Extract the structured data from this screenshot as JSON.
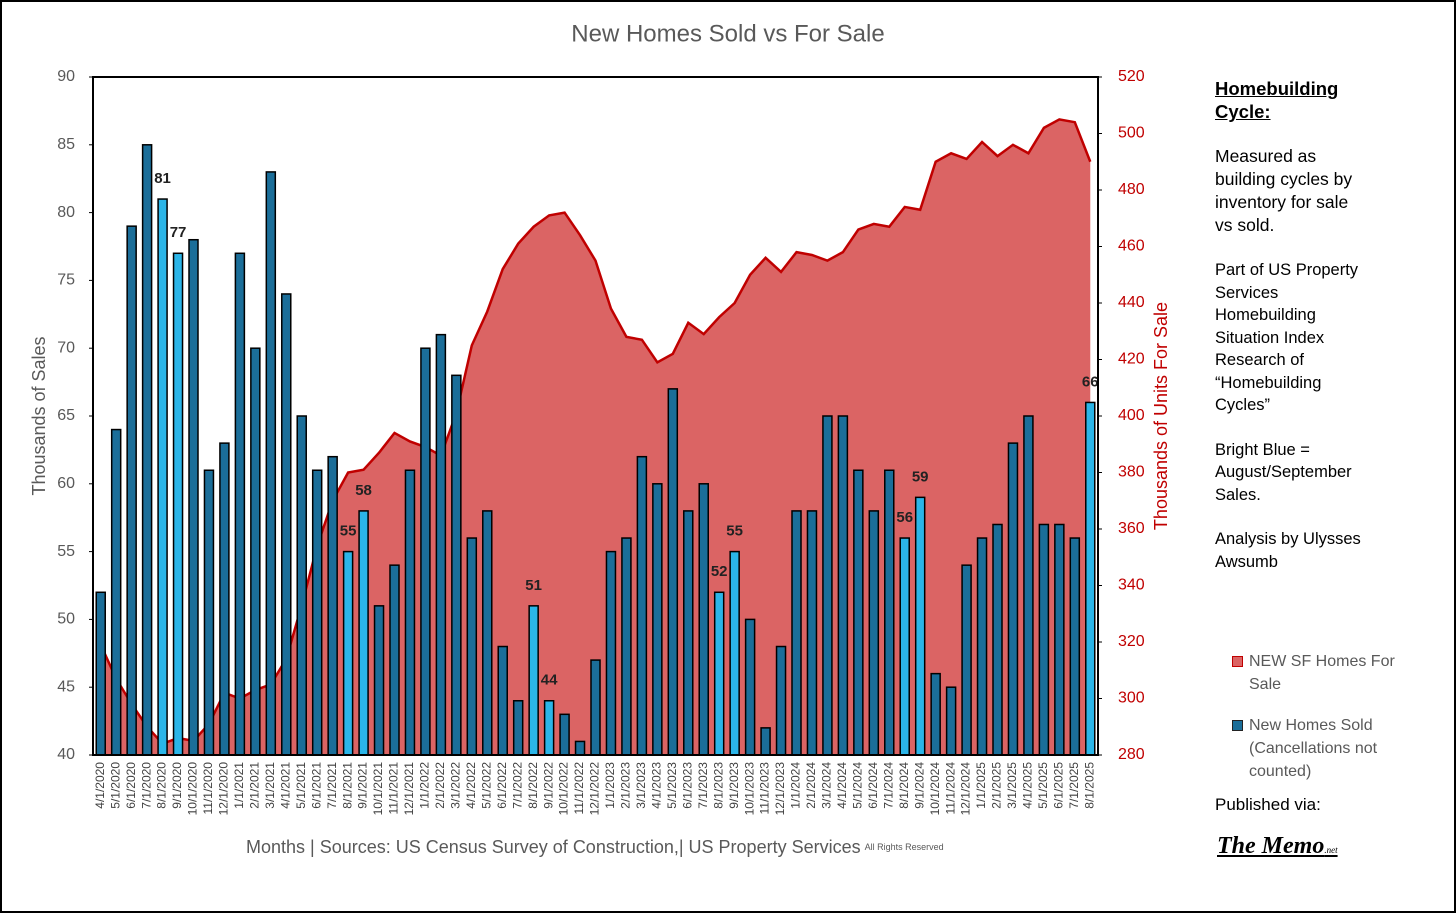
{
  "chart_data": {
    "type": "bar_area",
    "title": "New Homes Sold vs For Sale",
    "y_label": "Thousands of Sales",
    "y2_label": "Thousands of Units For Sale",
    "x_label": "Months | Sources: US Census Survey of Construction,| US Property Services",
    "x_note": "All Rights Reserved",
    "categories": [
      "4/1/2020",
      "5/1/2020",
      "6/1/2020",
      "7/1/2020",
      "8/1/2020",
      "9/1/2020",
      "10/1/2020",
      "11/1/2020",
      "12/1/2020",
      "1/1/2021",
      "2/1/2021",
      "3/1/2021",
      "4/1/2021",
      "5/1/2021",
      "6/1/2021",
      "7/1/2021",
      "8/1/2021",
      "9/1/2021",
      "10/1/2021",
      "11/1/2021",
      "12/1/2021",
      "1/1/2022",
      "2/1/2022",
      "3/1/2022",
      "4/1/2022",
      "5/1/2022",
      "6/1/2022",
      "7/1/2022",
      "8/1/2022",
      "9/1/2022",
      "10/1/2022",
      "11/1/2022",
      "12/1/2022",
      "1/1/2023",
      "2/1/2023",
      "3/1/2023",
      "4/1/2023",
      "5/1/2023",
      "6/1/2023",
      "7/1/2023",
      "8/1/2023",
      "9/1/2023",
      "10/1/2023",
      "11/1/2023",
      "12/1/2023",
      "1/1/2024",
      "2/1/2024",
      "3/1/2024",
      "4/1/2024",
      "5/1/2024",
      "6/1/2024",
      "7/1/2024",
      "8/1/2024",
      "9/1/2024",
      "10/1/2024",
      "11/1/2024",
      "12/1/2024",
      "1/1/2025",
      "2/1/2025",
      "3/1/2025",
      "4/1/2025",
      "5/1/2025",
      "6/1/2025",
      "7/1/2025",
      "8/1/2025"
    ],
    "series": [
      {
        "name": "NEW SF Homes For Sale",
        "type": "area",
        "axis": "y2",
        "color": "#db6464",
        "line_color": "#c00000",
        "values": [
          319,
          307,
          298,
          290,
          284,
          286,
          285,
          291,
          302,
          300,
          303,
          305,
          314,
          333,
          354,
          370,
          380,
          381,
          387,
          394,
          391,
          389,
          386,
          401,
          425,
          437,
          452,
          461,
          467,
          471,
          472,
          464,
          455,
          438,
          428,
          427,
          419,
          422,
          433,
          429,
          435,
          440,
          450,
          456,
          451,
          458,
          457,
          455,
          458,
          466,
          468,
          467,
          474,
          473,
          490,
          493,
          491,
          497,
          492,
          496,
          493,
          502,
          505,
          504,
          490
        ]
      },
      {
        "name": "New Homes Sold (Cancellations not counted)",
        "type": "bar",
        "axis": "y",
        "color": "#1b6e99",
        "values": [
          52,
          64,
          79,
          85,
          81,
          77,
          78,
          61,
          63,
          77,
          70,
          83,
          74,
          65,
          61,
          62,
          55,
          58,
          51,
          54,
          61,
          70,
          71,
          68,
          56,
          58,
          48,
          44,
          51,
          44,
          43,
          41,
          47,
          55,
          56,
          62,
          60,
          67,
          58,
          60,
          52,
          55,
          50,
          42,
          48,
          58,
          58,
          65,
          65,
          61,
          58,
          61,
          56,
          59,
          46,
          45,
          54,
          56,
          57,
          63,
          65,
          57,
          57,
          56,
          66
        ],
        "colors": [
          "#1b6e99",
          "#1b6e99",
          "#1b6e99",
          "#1b6e99",
          "#2bb5e8",
          "#2bb5e8",
          "#1b6e99",
          "#1b6e99",
          "#1b6e99",
          "#1b6e99",
          "#1b6e99",
          "#1b6e99",
          "#1b6e99",
          "#1b6e99",
          "#1b6e99",
          "#1b6e99",
          "#2bb5e8",
          "#2bb5e8",
          "#1b6e99",
          "#1b6e99",
          "#1b6e99",
          "#1b6e99",
          "#1b6e99",
          "#1b6e99",
          "#1b6e99",
          "#1b6e99",
          "#1b6e99",
          "#1b6e99",
          "#2bb5e8",
          "#2bb5e8",
          "#1b6e99",
          "#1b6e99",
          "#1b6e99",
          "#1b6e99",
          "#1b6e99",
          "#1b6e99",
          "#1b6e99",
          "#1b6e99",
          "#1b6e99",
          "#1b6e99",
          "#2bb5e8",
          "#2bb5e8",
          "#1b6e99",
          "#1b6e99",
          "#1b6e99",
          "#1b6e99",
          "#1b6e99",
          "#1b6e99",
          "#1b6e99",
          "#1b6e99",
          "#1b6e99",
          "#1b6e99",
          "#2bb5e8",
          "#2bb5e8",
          "#1b6e99",
          "#1b6e99",
          "#1b6e99",
          "#1b6e99",
          "#1b6e99",
          "#1b6e99",
          "#1b6e99",
          "#1b6e99",
          "#1b6e99",
          "#1b6e99",
          "#2bb5e8"
        ],
        "value_labels": [
          null,
          null,
          null,
          null,
          "81",
          "77",
          null,
          null,
          null,
          null,
          null,
          null,
          null,
          null,
          null,
          null,
          "55",
          "58",
          null,
          null,
          null,
          null,
          null,
          null,
          null,
          null,
          null,
          null,
          "51",
          "44",
          null,
          null,
          null,
          null,
          null,
          null,
          null,
          null,
          null,
          null,
          "52",
          "55",
          null,
          null,
          null,
          null,
          null,
          null,
          null,
          null,
          null,
          null,
          "56",
          "59",
          null,
          null,
          null,
          null,
          null,
          null,
          null,
          null,
          null,
          null,
          "66"
        ]
      }
    ],
    "ylim": [
      40,
      90
    ],
    "yticks": [
      40,
      45,
      50,
      55,
      60,
      65,
      70,
      75,
      80,
      85,
      90
    ],
    "y2lim": [
      280,
      520
    ],
    "y2ticks": [
      280,
      300,
      320,
      340,
      360,
      380,
      400,
      420,
      440,
      460,
      480,
      500,
      520
    ],
    "grid": false,
    "legend": "right"
  },
  "sidebar": {
    "heading": "Homebuilding Cycle:",
    "paragraphs": [
      "Measured as building cycles by inventory for sale vs sold.",
      "Part of US Property Services Homebuilding Situation Index Research of “Homebuilding Cycles”",
      "Bright Blue = August/September Sales.",
      "Analysis by Ulysses Awsumb"
    ],
    "published": "Published via:",
    "logo": "The Memo",
    "logo_suffix": ".net"
  }
}
